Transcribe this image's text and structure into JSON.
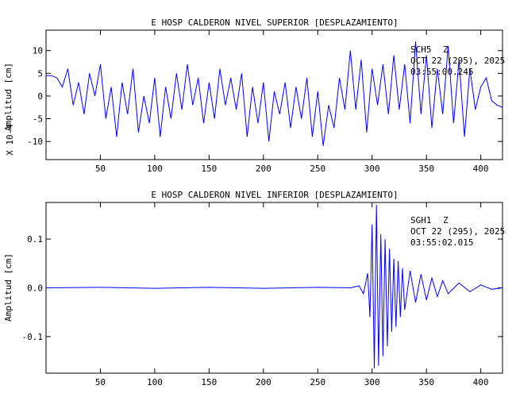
{
  "chart_data": [
    {
      "type": "line",
      "title": "E HOSP CALDERON NIVEL SUPERIOR [DESPLAZAMIENTO]",
      "ylabel": "Amplitud [cm]",
      "yscale_label": "X 10-4",
      "xlabel": "",
      "xlim": [
        0,
        420
      ],
      "ylim": [
        -14,
        14.5
      ],
      "xticks": [
        50,
        100,
        150,
        200,
        250,
        300,
        350,
        400
      ],
      "yticks": [
        10,
        5,
        0,
        -5,
        -10
      ],
      "annotation": {
        "station": "SCH5",
        "component": "Z",
        "date": "OCT 22 (295), 2025",
        "time": "03:55:00.245"
      },
      "color": "#0000ff",
      "series": [
        {
          "x": [
            0,
            5,
            10,
            15,
            20,
            25,
            30,
            35,
            40,
            45,
            50,
            55,
            60,
            65,
            70,
            75,
            80,
            85,
            90,
            95,
            100,
            105,
            110,
            115,
            120,
            125,
            130,
            135,
            140,
            145,
            150,
            155,
            160,
            165,
            170,
            175,
            180,
            185,
            190,
            195,
            200,
            205,
            210,
            215,
            220,
            225,
            230,
            235,
            240,
            245,
            250,
            255,
            260,
            265,
            270,
            275,
            280,
            285,
            290,
            295,
            300,
            305,
            310,
            315,
            320,
            325,
            330,
            335,
            340,
            345,
            350,
            355,
            360,
            365,
            370,
            375,
            380,
            385,
            390,
            395,
            400,
            405,
            410,
            415,
            420
          ],
          "y": [
            4.5,
            4.5,
            4,
            2,
            6,
            -2,
            3,
            -4,
            5,
            0,
            7,
            -5,
            2,
            -9,
            3,
            -4,
            6,
            -8,
            0,
            -6,
            4,
            -9,
            2,
            -5,
            5,
            -3,
            7,
            -2,
            4,
            -6,
            3,
            -5,
            6,
            -2,
            4,
            -3,
            5,
            -9,
            2,
            -6,
            3,
            -10,
            1,
            -4,
            3,
            -7,
            2,
            -5,
            4,
            -9,
            1,
            -11,
            -2,
            -7,
            4,
            -3,
            10,
            -3,
            8,
            -8,
            6,
            -2,
            7,
            -4,
            9,
            -3,
            7,
            -6,
            12,
            -4,
            9,
            -7,
            6,
            -4,
            11,
            -6,
            8,
            -9,
            6,
            -3,
            2,
            4,
            -1,
            -2,
            -2.5
          ]
        }
      ]
    },
    {
      "type": "line",
      "title": "E HOSP CALDERON NIVEL INFERIOR [DESPLAZAMIENTO]",
      "ylabel": "Amplitud [cm]",
      "xlabel": "",
      "xlim": [
        0,
        420
      ],
      "ylim": [
        -0.175,
        0.175
      ],
      "xticks": [
        50,
        100,
        150,
        200,
        250,
        300,
        350,
        400
      ],
      "yticks": [
        0.1,
        0.0,
        -0.1
      ],
      "ytick_labels": [
        "0.1",
        "0.0",
        "-0.1"
      ],
      "annotation": {
        "station": "SGH1",
        "component": "Z",
        "date": "OCT 22 (295), 2025",
        "time": "03:55:02.015"
      },
      "color": "#0000ff",
      "series": [
        {
          "x": [
            0,
            50,
            100,
            150,
            200,
            250,
            280,
            288,
            292,
            296,
            298,
            300,
            302,
            304,
            306,
            308,
            310,
            312,
            314,
            316,
            318,
            320,
            322,
            324,
            326,
            328,
            330,
            335,
            340,
            345,
            350,
            355,
            360,
            365,
            370,
            380,
            390,
            400,
            410,
            420
          ],
          "y": [
            0.0,
            0.001,
            -0.001,
            0.001,
            -0.001,
            0.001,
            0.0,
            0.004,
            -0.012,
            0.03,
            -0.06,
            0.13,
            -0.165,
            0.17,
            -0.16,
            0.11,
            -0.14,
            0.1,
            -0.12,
            0.08,
            -0.09,
            0.06,
            -0.08,
            0.055,
            -0.06,
            0.04,
            -0.045,
            0.035,
            -0.03,
            0.028,
            -0.025,
            0.02,
            -0.018,
            0.015,
            -0.012,
            0.01,
            -0.008,
            0.006,
            -0.003,
            0.0
          ]
        }
      ]
    }
  ]
}
